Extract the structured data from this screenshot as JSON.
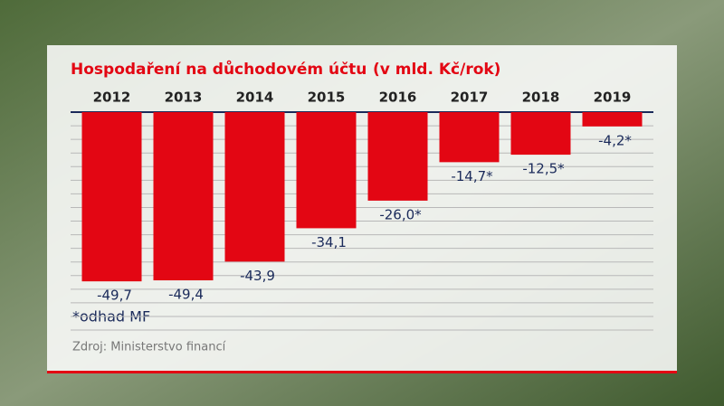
{
  "chart_data": {
    "type": "bar",
    "title": "Hospodaření na důchodovém účtu",
    "subtitle": "(v mld. Kč/rok)",
    "categories": [
      "2012",
      "2013",
      "2014",
      "2015",
      "2016",
      "2017",
      "2018",
      "2019"
    ],
    "values": [
      -49.7,
      -49.4,
      -43.9,
      -34.1,
      -26.0,
      -14.7,
      -12.5,
      -4.2
    ],
    "value_labels": [
      "-49,7",
      "-49,4",
      "-43,9",
      "-34,1",
      "-26,0*",
      "-14,7*",
      "-12,5*",
      "-4,2*"
    ],
    "color": "#e30613",
    "ylim": [
      -64,
      0
    ],
    "yticks": [
      0,
      -4,
      -8,
      -12,
      -16,
      -20,
      -24,
      -28,
      -32,
      -36,
      -40,
      -44,
      -48,
      -52,
      -56,
      -60,
      -64
    ],
    "grid": true,
    "footnote": "*odhad MF",
    "source": "Zdroj: Ministerstvo financí"
  }
}
